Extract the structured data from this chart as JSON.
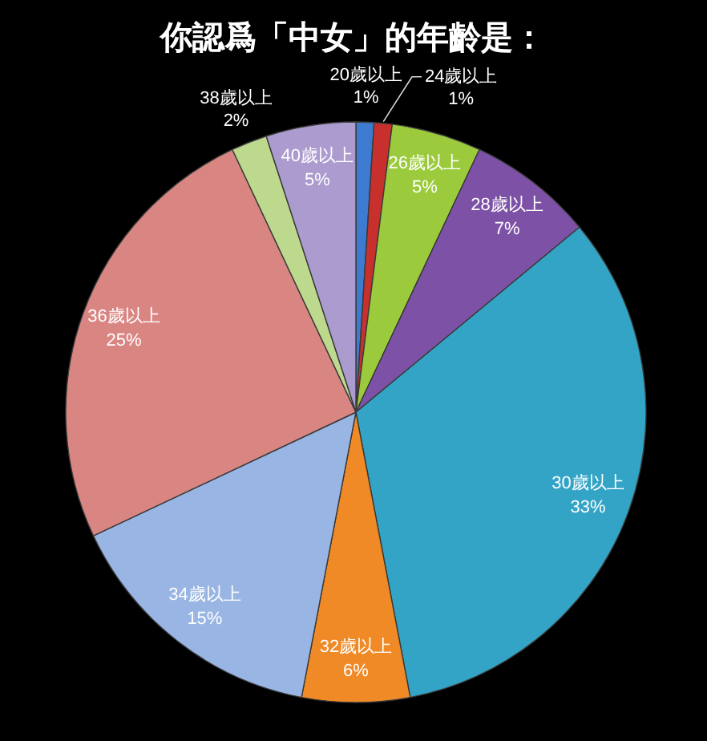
{
  "chart_data": {
    "type": "pie",
    "title": "你認爲「中女」的年齡是：",
    "categories": [
      "20歲以上",
      "24歲以上",
      "26歲以上",
      "28歲以上",
      "30歲以上",
      "32歲以上",
      "34歲以上",
      "36歲以上",
      "38歲以上",
      "40歲以上"
    ],
    "values": [
      1,
      1,
      5,
      7,
      33,
      6,
      15,
      25,
      2,
      5
    ],
    "colors": [
      "#3d7bd0",
      "#c8302e",
      "#9bcb3c",
      "#7d52a6",
      "#34a4c6",
      "#f08a26",
      "#99b5e3",
      "#d98683",
      "#bcd98e",
      "#ab9bcf"
    ],
    "value_labels": [
      "1%",
      "1%",
      "5%",
      "7%",
      "33%",
      "6%",
      "15%",
      "25%",
      "2%",
      "5%"
    ]
  }
}
